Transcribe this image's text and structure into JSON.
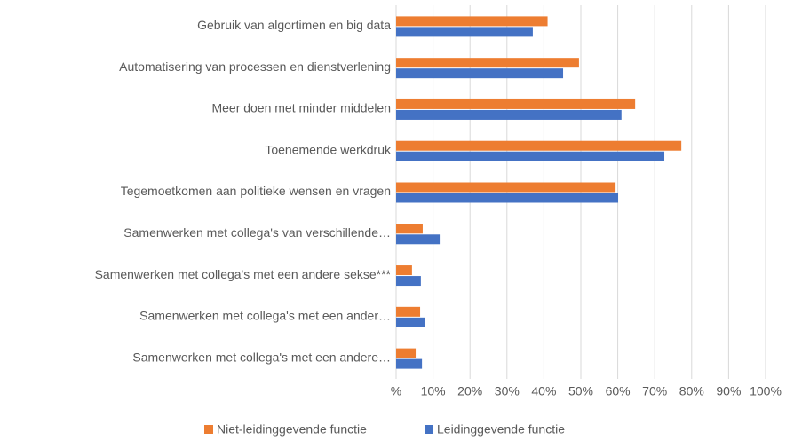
{
  "chart_data": {
    "type": "bar",
    "orientation": "horizontal",
    "categories": [
      "Gebruik van algortimen en big data",
      "Automatisering van processen en dienstverlening",
      "Meer doen met minder middelen",
      "Toenemende werkdruk",
      "Tegemoetkomen aan politieke wensen en vragen",
      "Samenwerken met collega's van verschillende…",
      "Samenwerken met collega's met een andere sekse***",
      "Samenwerken met collega's met een ander…",
      "Samenwerken met collega's met een andere…"
    ],
    "series": [
      {
        "name": "Niet-leidinggevende functie",
        "color": "#ed7d31",
        "values": [
          41,
          49.5,
          64.7,
          77.2,
          59.4,
          7.2,
          4.3,
          6.5,
          5.3
        ]
      },
      {
        "name": "Leidinggevende functie",
        "color": "#4472c4",
        "values": [
          37,
          45.2,
          61,
          72.6,
          60.1,
          11.8,
          6.7,
          7.7,
          7
        ]
      }
    ],
    "xlim": [
      0,
      100
    ],
    "xticks": [
      {
        "value": 0,
        "label": "%"
      },
      {
        "value": 10,
        "label": "10%"
      },
      {
        "value": 20,
        "label": "20%"
      },
      {
        "value": 30,
        "label": "30%"
      },
      {
        "value": 40,
        "label": "40%"
      },
      {
        "value": 50,
        "label": "50%"
      },
      {
        "value": 60,
        "label": "60%"
      },
      {
        "value": 70,
        "label": "70%"
      },
      {
        "value": 80,
        "label": "80%"
      },
      {
        "value": 90,
        "label": "90%"
      },
      {
        "value": 100,
        "label": "100%"
      }
    ],
    "grid": true,
    "legend": "bottom"
  }
}
